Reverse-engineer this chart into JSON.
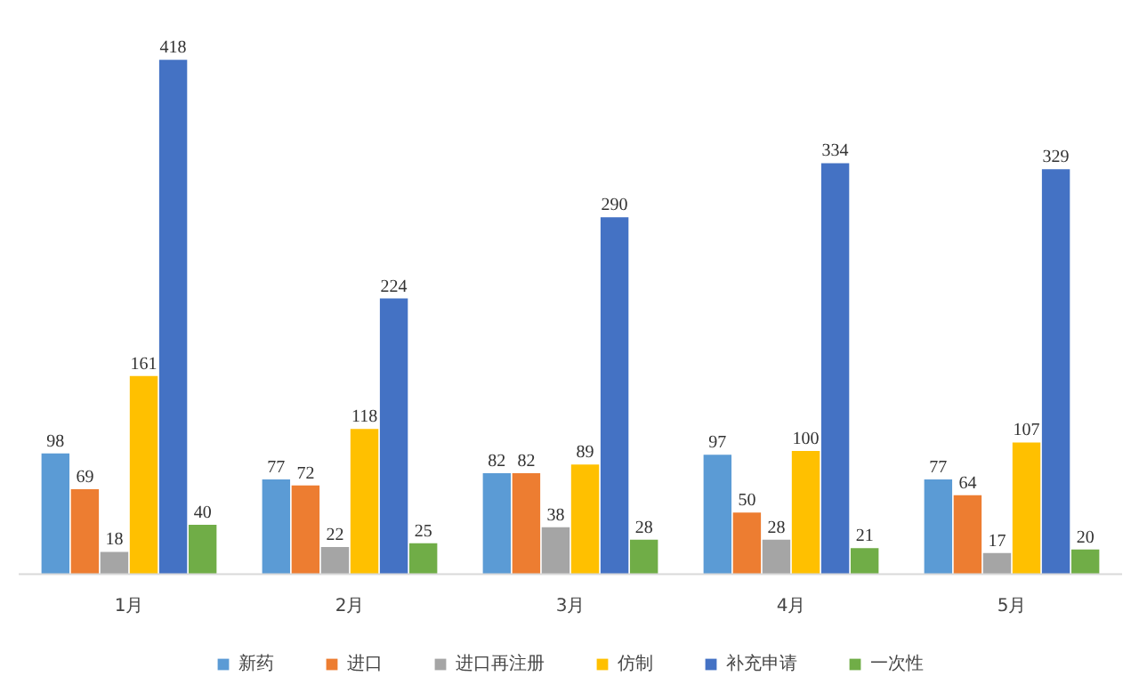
{
  "chart_data": {
    "type": "bar",
    "categories": [
      "1月",
      "2月",
      "3月",
      "4月",
      "5月"
    ],
    "series": [
      {
        "name": "新药",
        "color": "#5b9bd5",
        "values": [
          98,
          77,
          82,
          97,
          77
        ]
      },
      {
        "name": "进口",
        "color": "#ed7d31",
        "values": [
          69,
          72,
          82,
          50,
          64
        ]
      },
      {
        "name": "进口再注册",
        "color": "#a5a5a5",
        "values": [
          18,
          22,
          38,
          28,
          17
        ]
      },
      {
        "name": "仿制",
        "color": "#ffc000",
        "values": [
          161,
          118,
          89,
          100,
          107
        ]
      },
      {
        "name": "补充申请",
        "color": "#4472c4",
        "values": [
          418,
          224,
          290,
          334,
          329
        ]
      },
      {
        "name": "一次性",
        "color": "#70ad47",
        "values": [
          40,
          25,
          28,
          21,
          20
        ]
      }
    ],
    "data_labels": true,
    "grid": false,
    "legend": "bottom"
  }
}
